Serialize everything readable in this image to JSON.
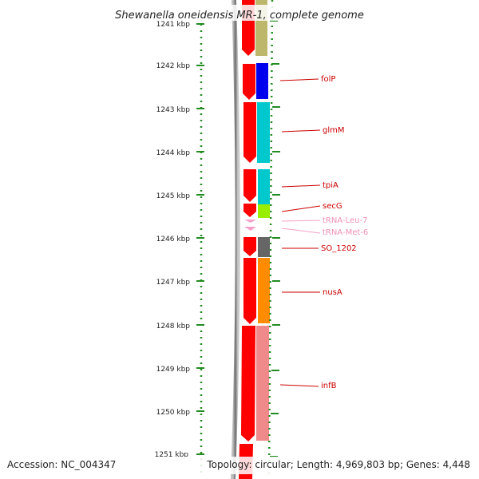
{
  "title": "Shewanella oneidensis MR-1, complete genome",
  "accession": "Accession: NC_004347",
  "summary": "Topology: circular; Length: 4,969,803 bp; Genes: 4,448",
  "kbp_labels": [
    "1241 kbp",
    "1242 kbp",
    "1243 kbp",
    "1244 kbp",
    "1245 kbp",
    "1246 kbp",
    "1247 kbp",
    "1248 kbp",
    "1249 kbp",
    "1250 kbp",
    "1251 kbp"
  ],
  "genes": [
    {
      "label": "folP",
      "color": "#cc0000"
    },
    {
      "label": "glmM",
      "color": "#cc0000"
    },
    {
      "label": "tpiA",
      "color": "#cc0000"
    },
    {
      "label": "secG",
      "color": "#cc0000"
    },
    {
      "label": "tRNA-Leu-7",
      "color": "#f090b8"
    },
    {
      "label": "tRNA-Met-6",
      "color": "#f090b8"
    },
    {
      "label": "SO_1202",
      "color": "#cc0000"
    },
    {
      "label": "nusA",
      "color": "#cc0000"
    },
    {
      "label": "infB",
      "color": "#cc0000"
    }
  ],
  "colors": {
    "cds_arrow": "#ff0000",
    "trna_arrow": "#f4a0c8",
    "tick": "#228b22",
    "backbone": "#808080"
  }
}
